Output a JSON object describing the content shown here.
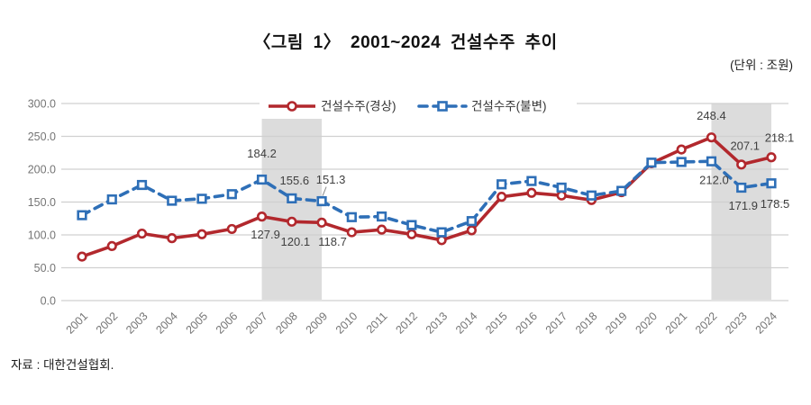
{
  "header": {
    "title": "〈그림 1〉 2001~2024 건설수주 추이",
    "unit_note": "(단위 : 조원)"
  },
  "source": {
    "text": "자료 : 대한건설협회."
  },
  "colors": {
    "nominal": "#b2282d",
    "real": "#2e6fb7",
    "grid": "#d0d0d0",
    "band": "#dcdcdc",
    "tick_text": "#757575",
    "label_text": "#3f3f3f",
    "legend_text": "#333333",
    "legend_bg": "#ffffff"
  },
  "chart_data": {
    "type": "line",
    "title": "〈그림 1〉 2001~2024 건설수주 추이",
    "unit": "조원",
    "x": [
      2001,
      2002,
      2003,
      2004,
      2005,
      2006,
      2007,
      2008,
      2009,
      2010,
      2011,
      2012,
      2013,
      2014,
      2015,
      2016,
      2017,
      2018,
      2019,
      2020,
      2021,
      2022,
      2023,
      2024
    ],
    "ylim": [
      0,
      300
    ],
    "ytick_step": 50,
    "ytick_format": "one_decimal",
    "grid": true,
    "legend_position": "top-center",
    "highlight_bands": [
      [
        2007,
        2009
      ],
      [
        2022,
        2024
      ]
    ],
    "series": [
      {
        "name": "건설수주(경상)",
        "color": "#b2282d",
        "line_style": "solid",
        "marker": "circle",
        "values": [
          67,
          83,
          102,
          95,
          101,
          109,
          127.9,
          120.1,
          118.7,
          104,
          108,
          101,
          92,
          107,
          158,
          164,
          160,
          153,
          165,
          209,
          230,
          248.4,
          207.1,
          218.1
        ],
        "point_labels": [
          {
            "index": 6,
            "text": "127.9",
            "dx": 4,
            "dy": 20
          },
          {
            "index": 7,
            "text": "120.1",
            "dx": 4,
            "dy": 22
          },
          {
            "index": 8,
            "text": "118.7",
            "dx": 12,
            "dy": 21
          },
          {
            "index": 21,
            "text": "248.4",
            "dx": 0,
            "dy": -24
          },
          {
            "index": 22,
            "text": "207.1",
            "dx": 4,
            "dy": -21
          },
          {
            "index": 23,
            "text": "218.1",
            "dx": 9,
            "dy": -22
          }
        ]
      },
      {
        "name": "건설수주(불변)",
        "color": "#2e6fb7",
        "line_style": "dashed",
        "marker": "square",
        "values": [
          130,
          154,
          176,
          152,
          155,
          162,
          184.2,
          155.6,
          151.3,
          127,
          128,
          115,
          104,
          121,
          177,
          182,
          172,
          160,
          167,
          210,
          211,
          212.0,
          171.9,
          178.5
        ],
        "point_labels": [
          {
            "index": 6,
            "text": "184.2",
            "dx": 0,
            "dy": -29
          },
          {
            "index": 7,
            "text": "155.6",
            "dx": 3,
            "dy": -20
          },
          {
            "index": 8,
            "text": "151.3",
            "dx": 10,
            "dy": -24,
            "leader": true
          },
          {
            "index": 21,
            "text": "212.0",
            "dx": 3,
            "dy": 21
          },
          {
            "index": 22,
            "text": "171.9",
            "dx": 2,
            "dy": 20
          },
          {
            "index": 23,
            "text": "178.5",
            "dx": 4,
            "dy": 23
          }
        ]
      }
    ]
  }
}
